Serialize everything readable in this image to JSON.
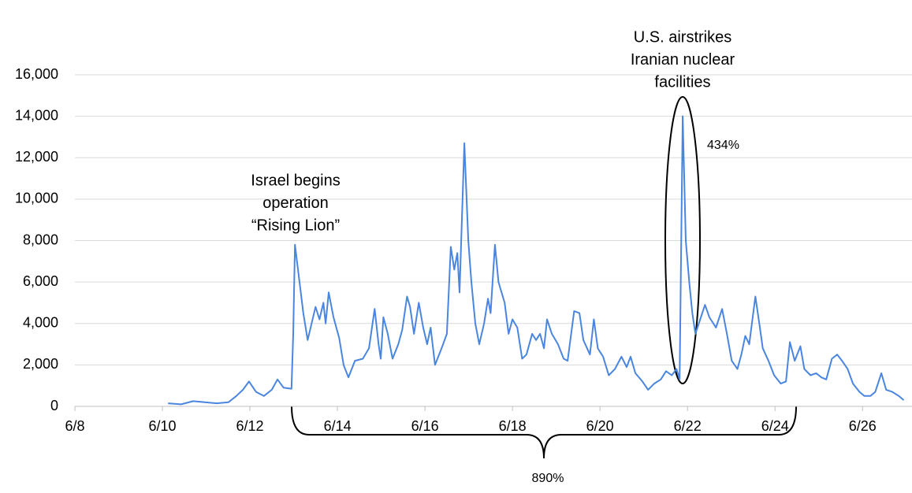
{
  "chart_data": {
    "type": "line",
    "x": [
      10.13,
      10.43,
      10.7,
      10.97,
      11.24,
      11.51,
      11.69,
      11.84,
      11.98,
      12.14,
      12.32,
      12.5,
      12.63,
      12.77,
      12.95,
      12.99,
      13.03,
      13.22,
      13.32,
      13.5,
      13.59,
      13.68,
      13.73,
      13.8,
      13.91,
      14.04,
      14.14,
      14.25,
      14.4,
      14.58,
      14.72,
      14.85,
      14.94,
      14.99,
      15.05,
      15.15,
      15.26,
      15.39,
      15.48,
      15.59,
      15.66,
      15.75,
      15.86,
      15.96,
      16.05,
      16.13,
      16.23,
      16.38,
      16.5,
      16.59,
      16.67,
      16.74,
      16.79,
      16.9,
      16.99,
      17.06,
      17.15,
      17.24,
      17.35,
      17.44,
      17.5,
      17.6,
      17.68,
      17.82,
      17.91,
      18.0,
      18.11,
      18.22,
      18.32,
      18.45,
      18.54,
      18.63,
      18.72,
      18.79,
      18.9,
      19.04,
      19.17,
      19.26,
      19.41,
      19.53,
      19.62,
      19.77,
      19.86,
      19.95,
      20.07,
      20.2,
      20.34,
      20.49,
      20.61,
      20.7,
      20.81,
      20.97,
      21.1,
      21.24,
      21.39,
      21.51,
      21.64,
      21.75,
      21.82,
      21.89,
      21.96,
      22.04,
      22.11,
      22.18,
      22.29,
      22.4,
      22.5,
      22.65,
      22.79,
      22.9,
      23.01,
      23.14,
      23.23,
      23.32,
      23.41,
      23.55,
      23.64,
      23.72,
      23.85,
      23.98,
      24.13,
      24.25,
      24.34,
      24.45,
      24.58,
      24.67,
      24.81,
      24.94,
      25.06,
      25.17,
      25.3,
      25.42,
      25.53,
      25.66,
      25.78,
      25.93,
      26.04,
      26.18,
      26.29,
      26.43,
      26.54,
      26.68,
      26.83,
      26.94
    ],
    "values": [
      150,
      100,
      250,
      200,
      150,
      200,
      500,
      800,
      1200,
      700,
      500,
      800,
      1300,
      900,
      850,
      3500,
      7800,
      4500,
      3200,
      4800,
      4200,
      5000,
      4000,
      5500,
      4300,
      3300,
      2000,
      1400,
      2200,
      2300,
      2800,
      4700,
      3000,
      2300,
      4300,
      3500,
      2300,
      3000,
      3700,
      5300,
      4800,
      3500,
      5000,
      3800,
      3000,
      3800,
      2000,
      2800,
      3500,
      7700,
      6600,
      7400,
      5500,
      12700,
      8000,
      6000,
      4000,
      3000,
      4000,
      5200,
      4500,
      7800,
      6000,
      5000,
      3500,
      4200,
      3800,
      2300,
      2500,
      3500,
      3200,
      3500,
      2800,
      4200,
      3500,
      3000,
      2300,
      2200,
      4600,
      4500,
      3200,
      2500,
      4200,
      2800,
      2400,
      1500,
      1800,
      2400,
      1900,
      2400,
      1600,
      1200,
      800,
      1100,
      1300,
      1700,
      1500,
      1800,
      1300,
      14000,
      8000,
      6000,
      4500,
      3500,
      4200,
      4900,
      4300,
      3800,
      4700,
      3500,
      2200,
      1800,
      2500,
      3400,
      3000,
      5300,
      4000,
      2800,
      2200,
      1500,
      1100,
      1200,
      3100,
      2200,
      2900,
      1800,
      1500,
      1600,
      1400,
      1300,
      2300,
      2500,
      2200,
      1800,
      1100,
      700,
      500,
      500,
      700,
      1600,
      800,
      700,
      500,
      300
    ],
    "color": "#4a86e0",
    "xlim": [
      8,
      27.13
    ],
    "xticks": [
      {
        "value": 8,
        "label": "6/8"
      },
      {
        "value": 10,
        "label": "6/10"
      },
      {
        "value": 12,
        "label": "6/12"
      },
      {
        "value": 14,
        "label": "6/14"
      },
      {
        "value": 16,
        "label": "6/16"
      },
      {
        "value": 18,
        "label": "6/18"
      },
      {
        "value": 20,
        "label": "6/20"
      },
      {
        "value": 22,
        "label": "6/22"
      },
      {
        "value": 24,
        "label": "6/24"
      },
      {
        "value": 26,
        "label": "6/26"
      }
    ],
    "ylim": [
      0,
      16000
    ],
    "yticks": [
      0,
      {
        "value": 2000,
        "label": "2,000"
      },
      {
        "value": 4000,
        "label": "4,000"
      },
      {
        "value": 6000,
        "label": "6,000"
      },
      {
        "value": 8000,
        "label": "8,000"
      },
      {
        "value": 10000,
        "label": "10,000"
      },
      {
        "value": 12000,
        "label": "12,000"
      },
      {
        "value": 14000,
        "label": "14,000"
      },
      {
        "value": 16000,
        "label": "16,000"
      }
    ],
    "grid": true,
    "annotations": [
      {
        "lines": [
          "Israel begins",
          "operation",
          "“Rising Lion”"
        ]
      },
      {
        "lines": [
          "U.S. airstrikes",
          "Iranian nuclear",
          "facilities"
        ]
      },
      {
        "lines": [
          "434%"
        ]
      },
      {
        "lines": [
          "890%"
        ]
      }
    ]
  }
}
